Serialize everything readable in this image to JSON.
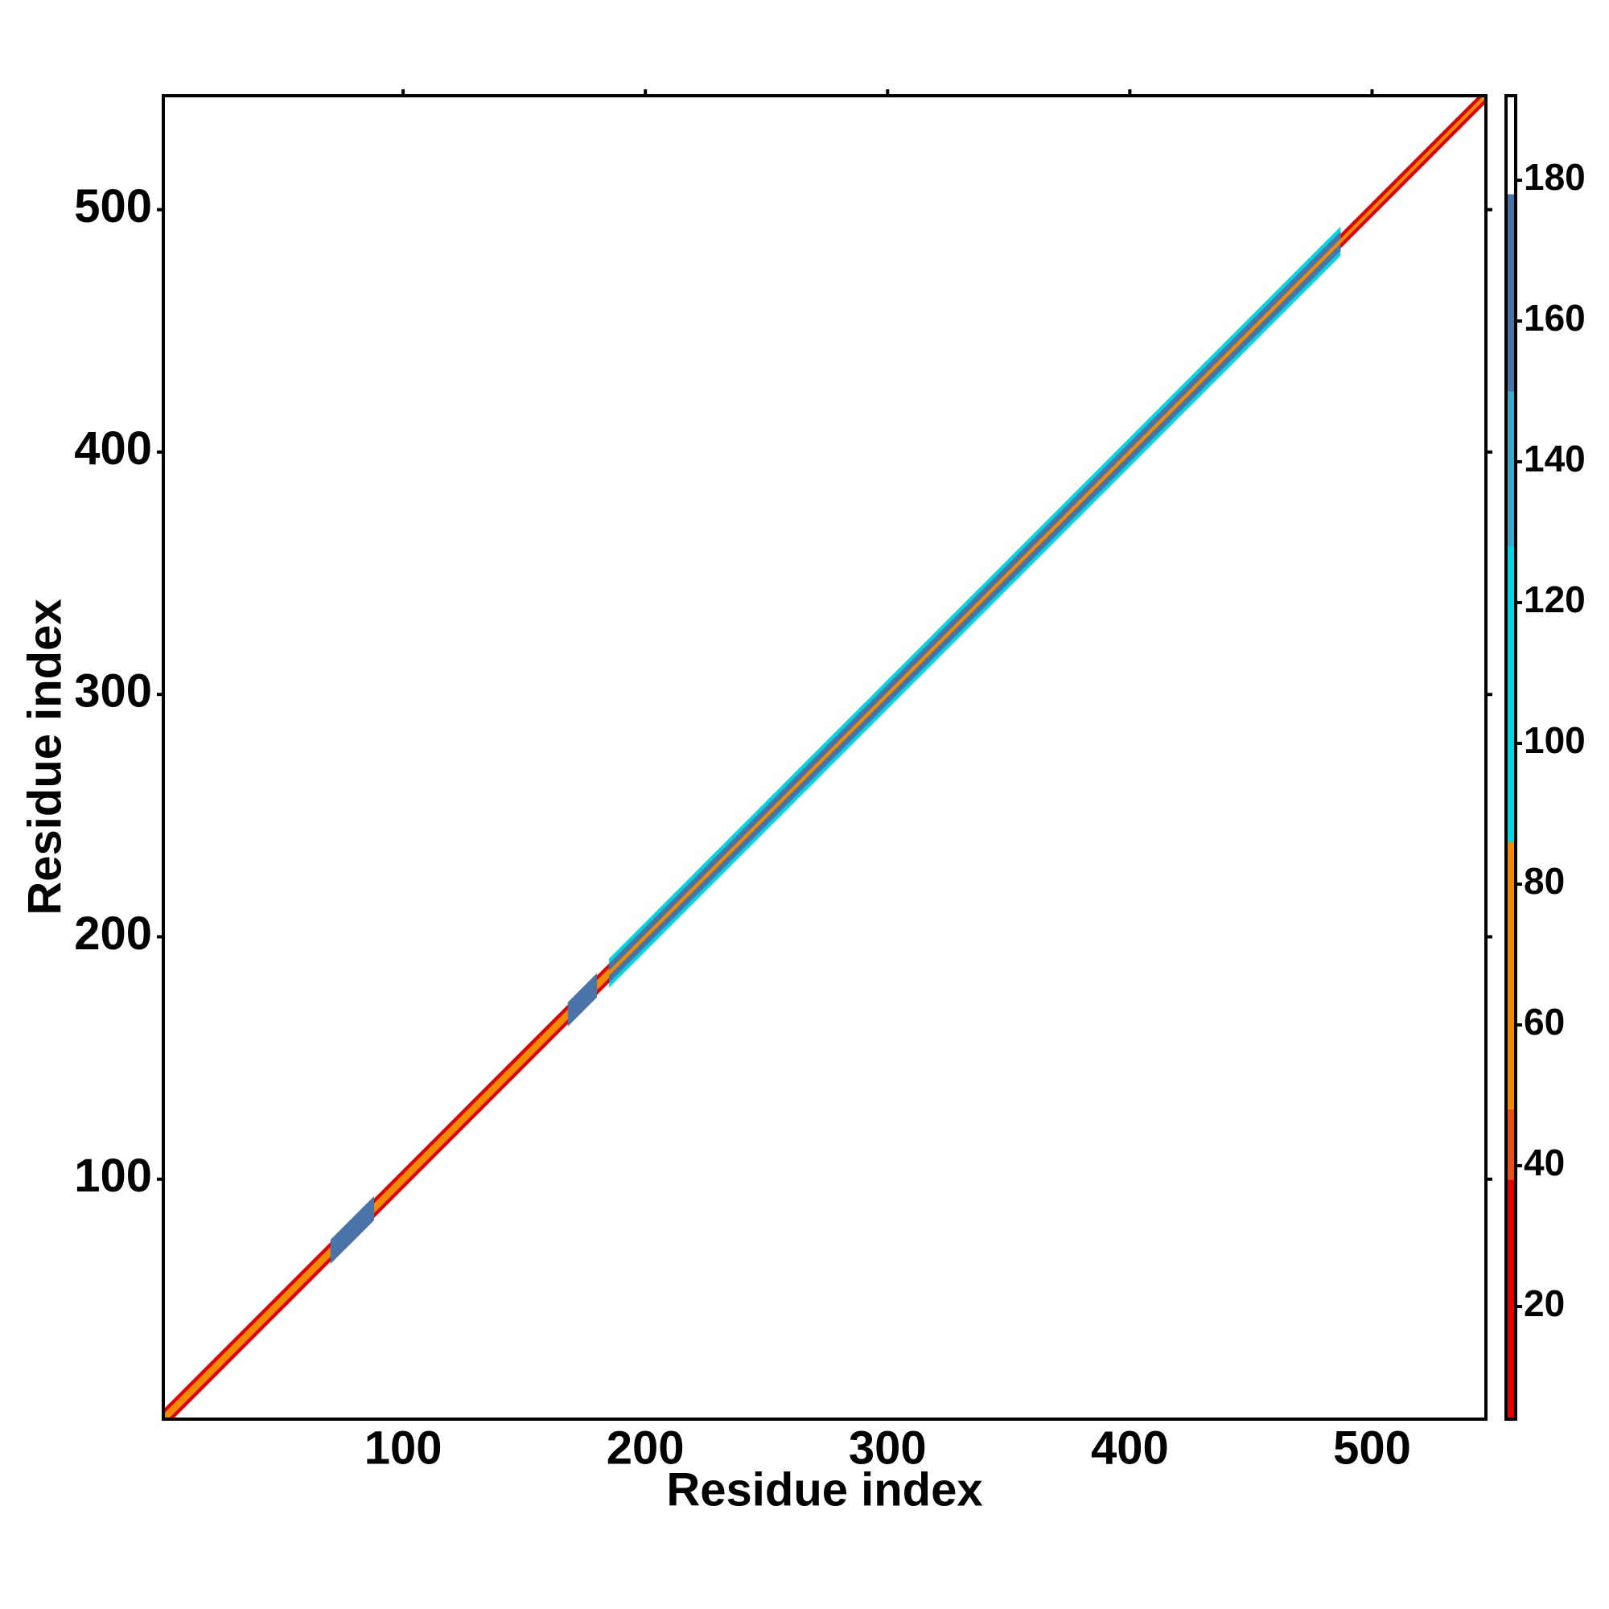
{
  "chart_data": {
    "type": "heatmap",
    "xlabel": "Residue index",
    "ylabel": "Residue index",
    "xlim": [
      1,
      547
    ],
    "ylim": [
      1,
      547
    ],
    "xticks": [
      100,
      200,
      300,
      400,
      500
    ],
    "yticks": [
      100,
      200,
      300,
      400,
      500
    ],
    "clim": [
      4,
      192
    ],
    "cticks": [
      20,
      40,
      60,
      80,
      100,
      120,
      140,
      160,
      180
    ],
    "colormap": [
      {
        "from": 4,
        "to": 38,
        "color": "#e00000"
      },
      {
        "from": 38,
        "to": 48,
        "color": "#e8501a"
      },
      {
        "from": 48,
        "to": 86,
        "color": "#f08c00"
      },
      {
        "from": 86,
        "to": 128,
        "color": "#00d7e0"
      },
      {
        "from": 128,
        "to": 150,
        "color": "#3fa9c9"
      },
      {
        "from": 150,
        "to": 178,
        "color": "#4a74a8"
      },
      {
        "from": 178,
        "to": 192,
        "color": "#ffffff"
      }
    ],
    "diagonal_bands": [
      {
        "from": 1,
        "to": 190,
        "offset": 4,
        "value": 30
      },
      {
        "from": 1,
        "to": 190,
        "offset": 2,
        "value": 70
      },
      {
        "from": 70,
        "to": 88,
        "offset": 5,
        "value": 165
      },
      {
        "from": 168,
        "to": 180,
        "offset": 5,
        "value": 165
      },
      {
        "from": 185,
        "to": 487,
        "offset": 6,
        "value": 110
      },
      {
        "from": 185,
        "to": 487,
        "offset": 4,
        "value": 165
      },
      {
        "from": 185,
        "to": 487,
        "offset": 1,
        "value": 70
      },
      {
        "from": 487,
        "to": 547,
        "offset": 3,
        "value": 30
      },
      {
        "from": 487,
        "to": 547,
        "offset": 1,
        "value": 70
      }
    ]
  }
}
